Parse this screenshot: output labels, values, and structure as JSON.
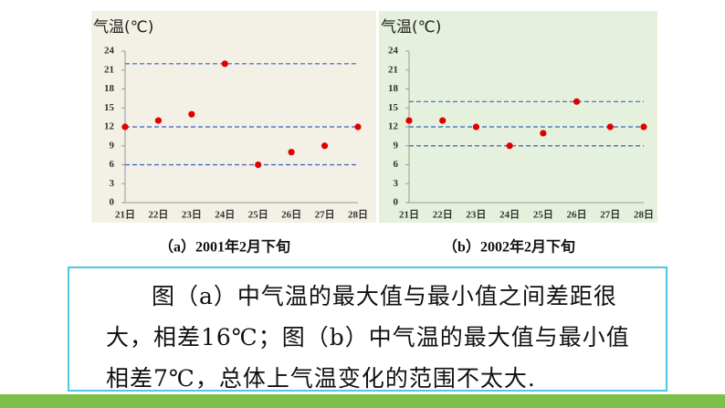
{
  "chart_data": [
    {
      "type": "scatter",
      "y_label": "气温(℃)",
      "caption": "（a）2001年2月下旬",
      "categories": [
        "21日",
        "22日",
        "23日",
        "24日",
        "25日",
        "26日",
        "27日",
        "28日"
      ],
      "values": [
        12,
        13,
        14,
        22,
        6,
        8,
        9,
        12
      ],
      "reference_lines": [
        22,
        12,
        6
      ],
      "color": "#e00000",
      "line_color": "#3a62c0",
      "plot_background": "#f3f0e6",
      "ylim": [
        0,
        24
      ],
      "yticks": [
        0,
        3,
        6,
        9,
        12,
        15,
        18,
        21,
        24
      ]
    },
    {
      "type": "scatter",
      "y_label": "气温(℃)",
      "caption": "（b）2002年2月下旬",
      "categories": [
        "21日",
        "22日",
        "23日",
        "24日",
        "25日",
        "26日",
        "27日",
        "28日"
      ],
      "values": [
        13,
        13,
        12,
        9,
        11,
        16,
        12,
        12
      ],
      "reference_lines": [
        16,
        12,
        9
      ],
      "color": "#e00000",
      "line_color": "#3a62c0",
      "plot_background": "#e6f1dd",
      "ylim": [
        0,
        24
      ],
      "yticks": [
        0,
        3,
        6,
        9,
        12,
        15,
        18,
        21,
        24
      ]
    }
  ],
  "note": "图（a）中气温的最大值与最小值之间差距很大，相差16℃；图（b）中气温的最大值与最小值相差7℃，总体上气温变化的范围不太大."
}
